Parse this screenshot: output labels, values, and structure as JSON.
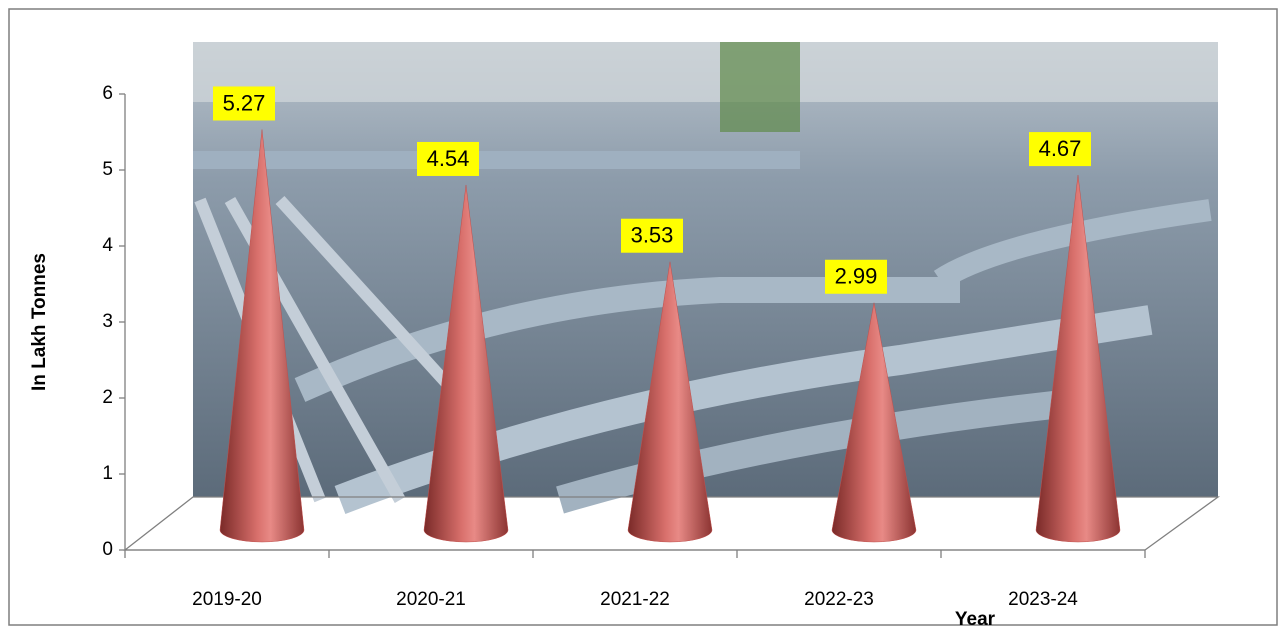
{
  "chart_data": {
    "type": "cone",
    "y_label": "In Lakh Tonnes",
    "x_label": "Year",
    "categories": [
      "2019-20",
      "2020-21",
      "2021-22",
      "2022-23",
      "2023-24"
    ],
    "values": [
      5.27,
      4.54,
      3.53,
      2.99,
      4.67
    ],
    "color": "#c0504d",
    "ylim": [
      0,
      6
    ],
    "yticks": [
      0,
      1,
      2,
      3,
      4,
      5,
      6
    ]
  }
}
